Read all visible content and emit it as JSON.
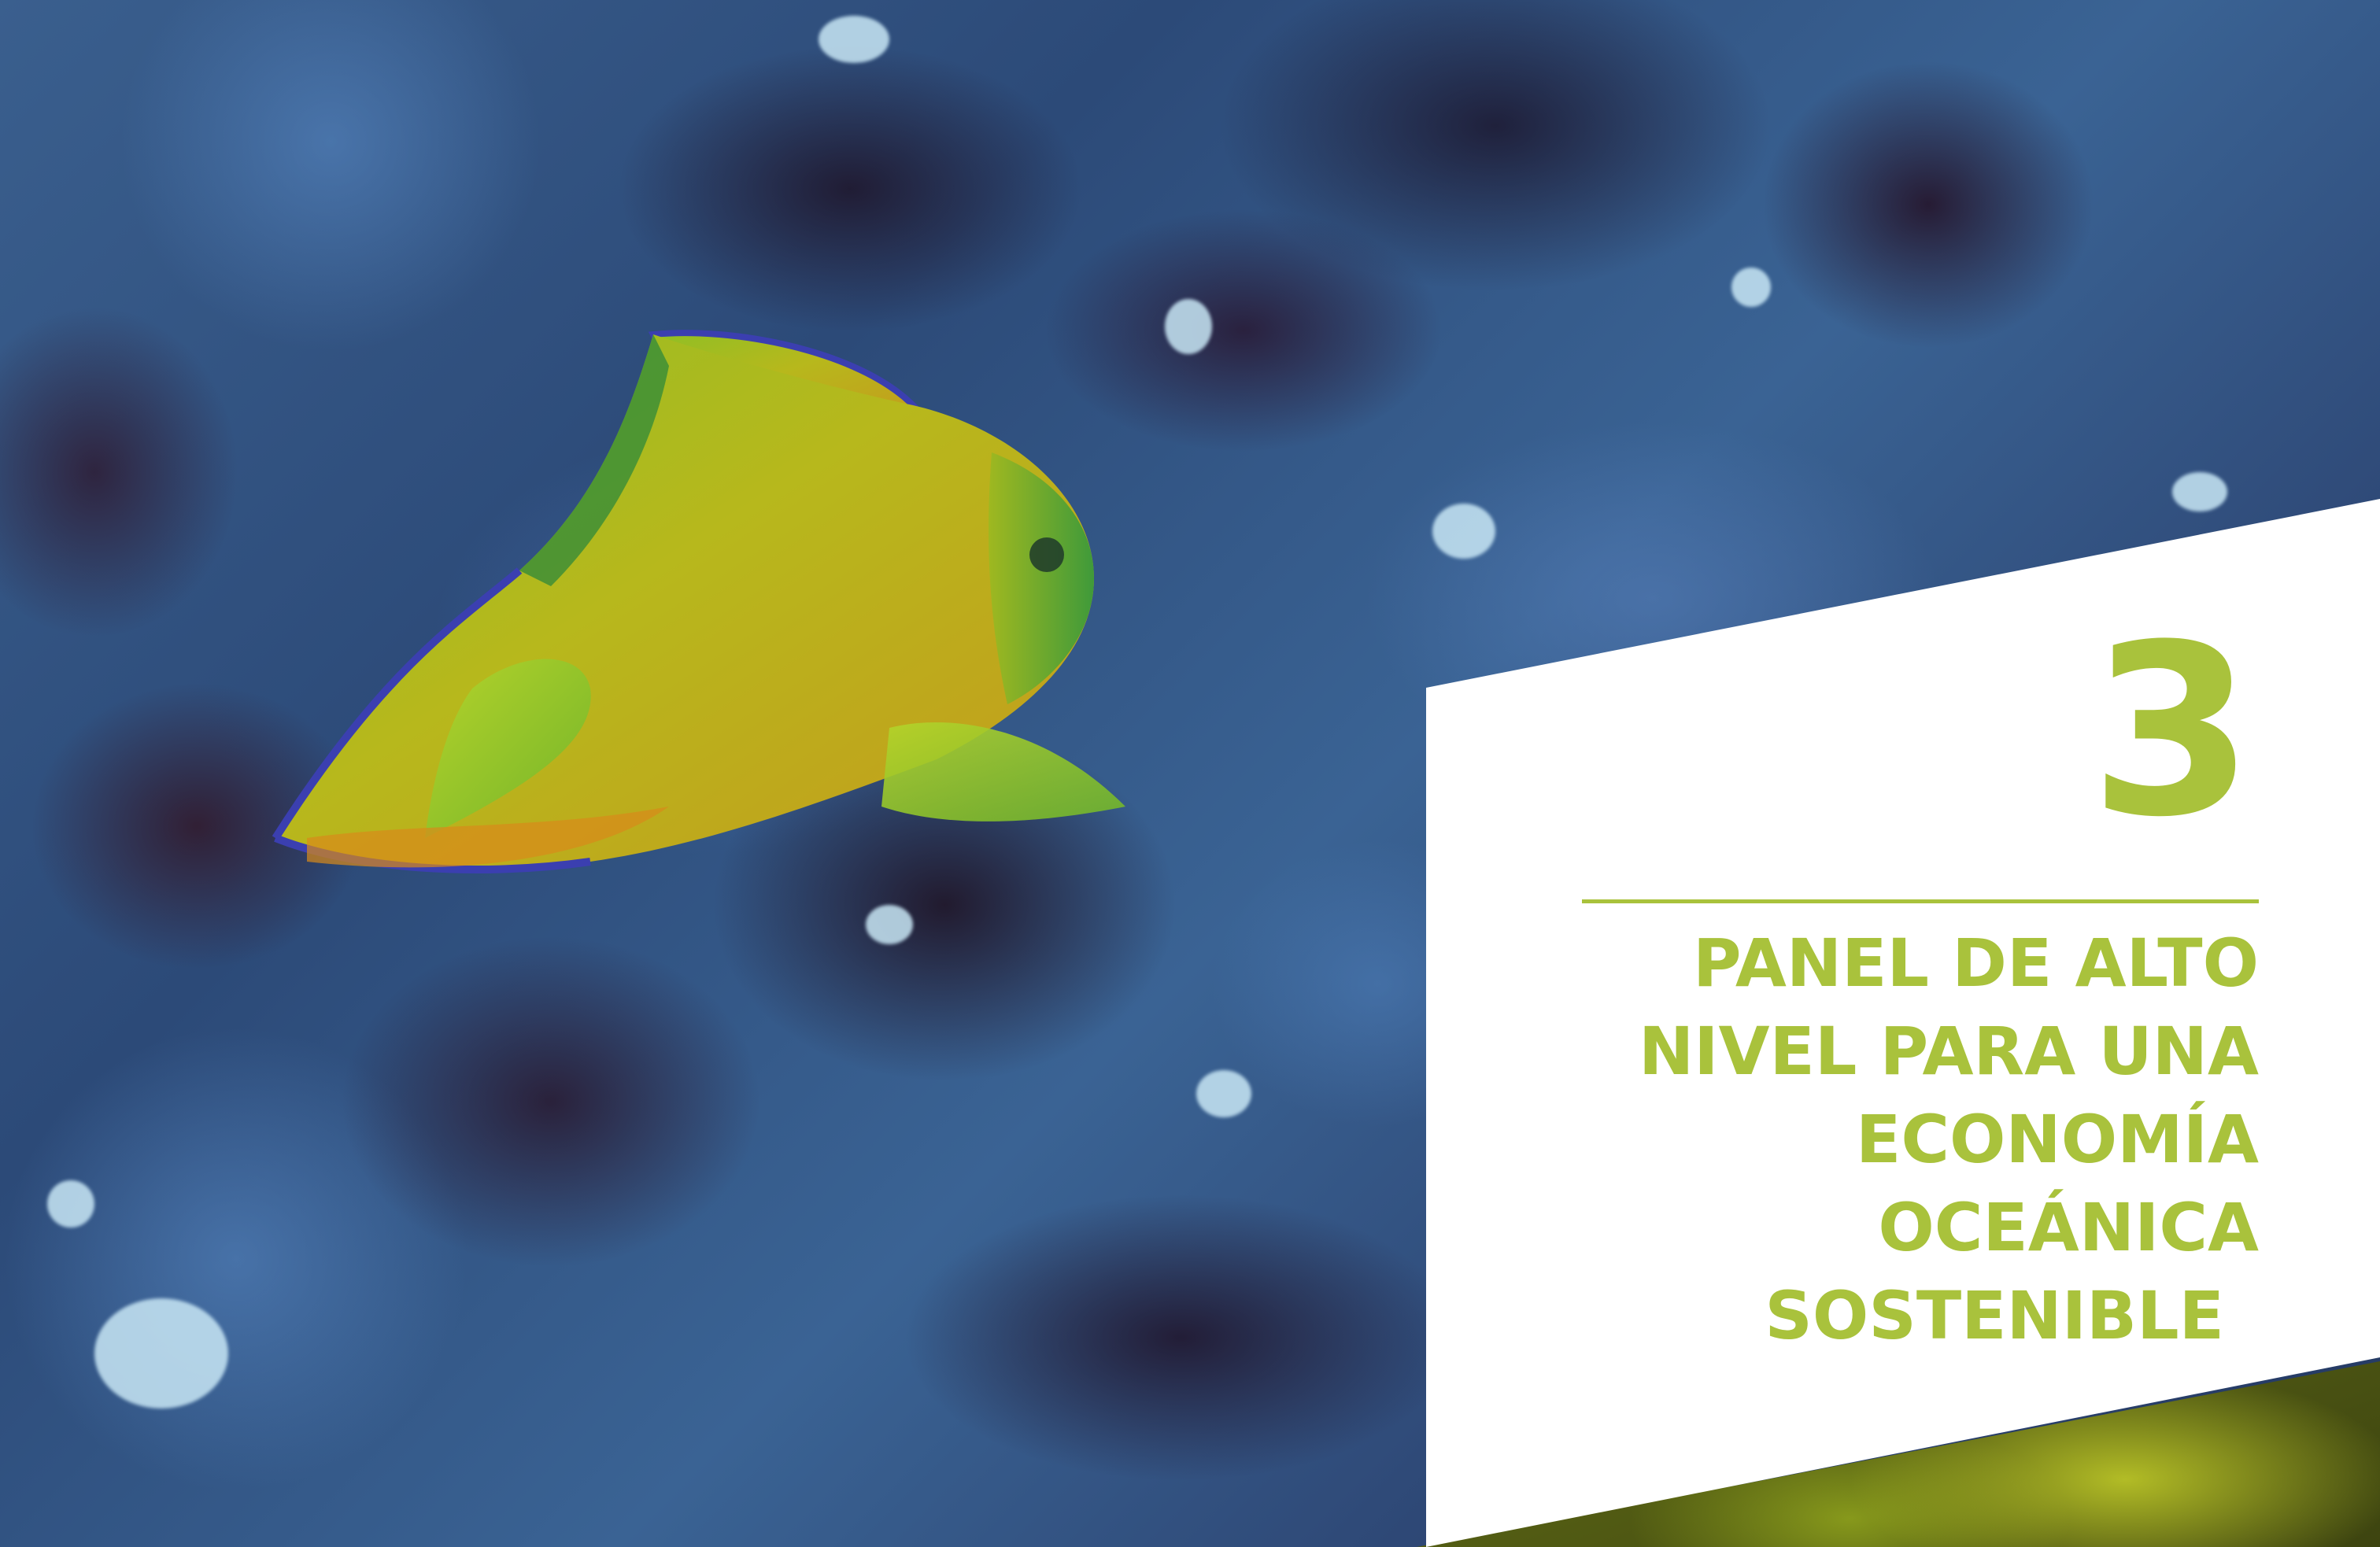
{
  "chapter": {
    "number": "3",
    "title_lines": [
      "PANEL DE ALTO",
      "NIVEL PARA UNA",
      "ECONOMÍA",
      "OCEÁNICA",
      "SOSTENIBLE"
    ]
  },
  "colors": {
    "accent": "#a9c23c",
    "panel": "#ffffff",
    "water": "#2c4a78",
    "fish_body": "#b8b51e",
    "fish_edge": "#3b3fb0"
  },
  "photo": {
    "subject": "angelfish-over-reef"
  }
}
